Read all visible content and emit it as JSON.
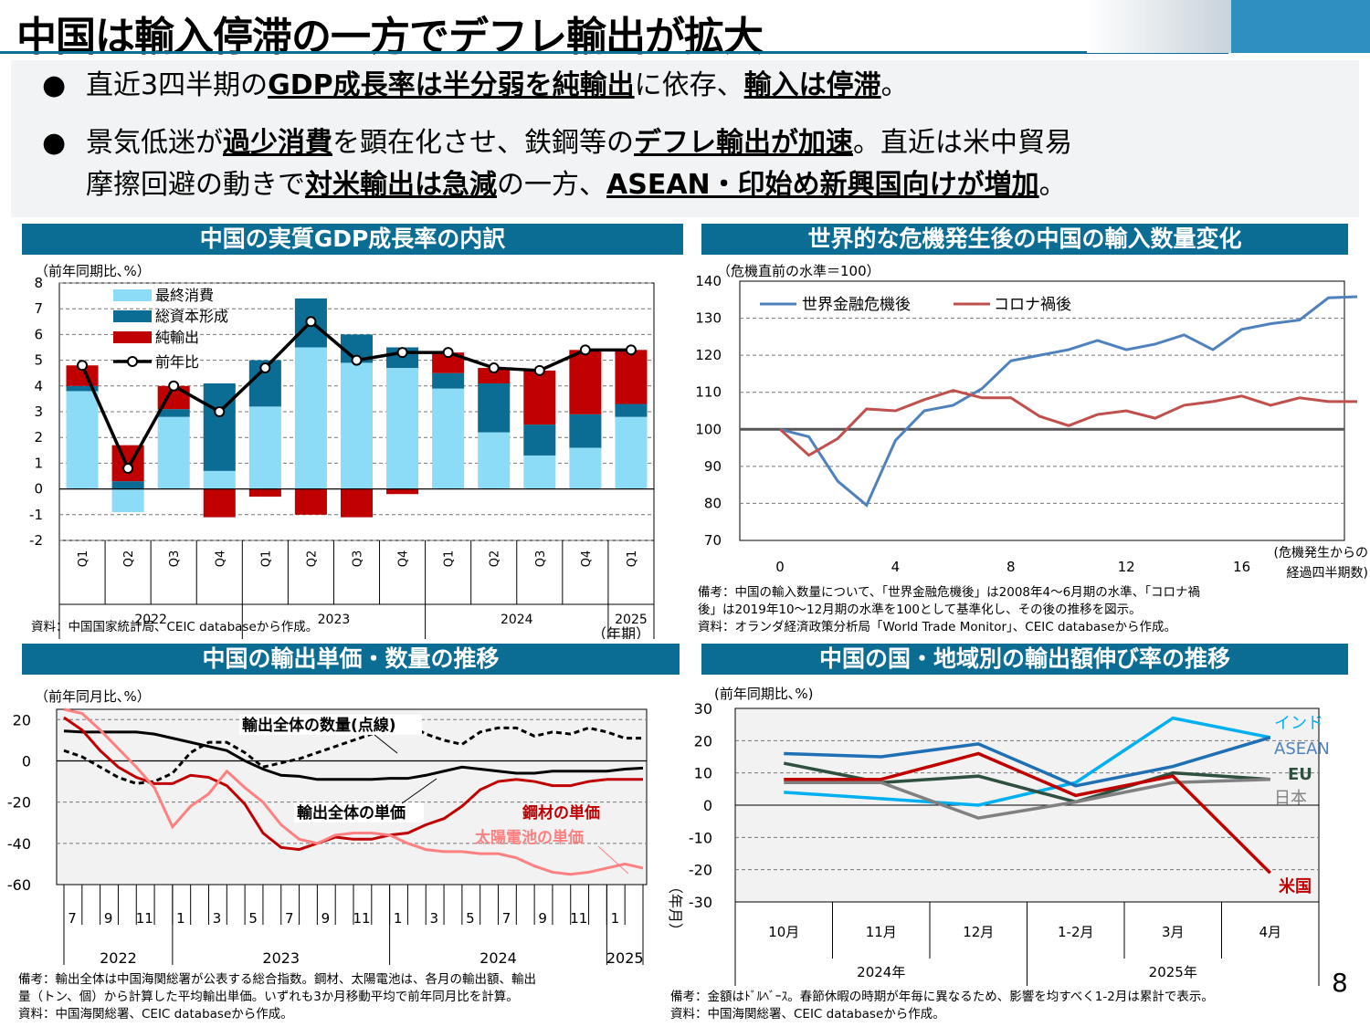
{
  "title": "中国は輸入停滞の一方でデフレ輸出が拡大",
  "bullets": [
    {
      "parts": [
        {
          "t": "直近3四半期の"
        },
        {
          "t": "GDP成長率は半分弱を純輸出",
          "b": true
        },
        {
          "t": "に依存、"
        },
        {
          "t": "輸入は停滞",
          "b": true
        },
        {
          "t": "。"
        }
      ]
    },
    {
      "parts": [
        {
          "t": "景気低迷が"
        },
        {
          "t": "過少消費",
          "b": true
        },
        {
          "t": "を顕在化させ、鉄鋼等の"
        },
        {
          "t": "デフレ輸出が加速",
          "b": true
        },
        {
          "t": "。直近は米中貿易"
        }
      ]
    },
    {
      "parts": [
        {
          "t": "摩擦回避の動きで"
        },
        {
          "t": "対米輸出は急減",
          "b": true
        },
        {
          "t": "の一方、"
        },
        {
          "t": "ASEAN・印始め新興国向けが増加",
          "b": true
        },
        {
          "t": "。"
        }
      ]
    }
  ],
  "page_number": "8",
  "colors": {
    "header": "#0b6c94",
    "consumption": "#8ddcf7",
    "investment": "#0b6c94",
    "netexport": "#c00000",
    "gfc": "#4f81bd",
    "covid": "#c0504d"
  },
  "chart_data": [
    {
      "type": "bar",
      "header": "中国の実質GDP成長率の内訳",
      "ylabel": "（前年同期比､%）",
      "xunit": "（年期）",
      "note": "資料：中国国家統計局、CEIC databaseから作成。",
      "ylim": [
        -2,
        8
      ],
      "yticks": [
        "8",
        "7",
        "6",
        "5",
        "4",
        "3",
        "2",
        "1",
        "0",
        "-1",
        "-2"
      ],
      "categories": [
        "Q1",
        "Q2",
        "Q3",
        "Q4",
        "Q1",
        "Q2",
        "Q3",
        "Q4",
        "Q1",
        "Q2",
        "Q3",
        "Q4",
        "Q1"
      ],
      "years": [
        {
          "label": "2022",
          "span": 4
        },
        {
          "label": "2023",
          "span": 4
        },
        {
          "label": "2024",
          "span": 4
        },
        {
          "label": "2025",
          "span": 1
        }
      ],
      "series": [
        {
          "name": "最終消費",
          "values": [
            3.8,
            -0.9,
            2.8,
            0.7,
            3.2,
            5.5,
            4.9,
            4.7,
            3.9,
            2.2,
            1.3,
            1.6,
            2.8
          ]
        },
        {
          "name": "総資本形成",
          "values": [
            0.2,
            0.3,
            0.3,
            3.4,
            1.8,
            1.9,
            1.1,
            0.8,
            0.6,
            1.9,
            1.2,
            1.3,
            0.5
          ]
        },
        {
          "name": "純輸出",
          "values": [
            0.8,
            1.4,
            0.9,
            -1.1,
            -0.3,
            -1.0,
            -1.1,
            -0.2,
            0.8,
            0.6,
            2.1,
            2.5,
            2.1
          ]
        },
        {
          "name": "前年比",
          "values": [
            4.8,
            0.8,
            4.0,
            3.0,
            4.7,
            6.5,
            5.0,
            5.3,
            5.3,
            4.7,
            4.6,
            5.4,
            5.4
          ]
        }
      ]
    },
    {
      "type": "line",
      "header": "世界的な危機発生後の中国の輸入数量変化",
      "ylabel": "（危機直前の水準＝100）",
      "xunit": [
        "(危機発生からの",
        "経過四半期数)"
      ],
      "note": [
        "備考：中国の輸入数量について、「世界金融危機後」は2008年4～6月期の水準、「コロナ禍",
        "後」は2019年10～12月期の水準を100として基準化し、その後の推移を図示。",
        "資料：オランダ経済政策分析局「World Trade Monitor」、CEIC databaseから作成。"
      ],
      "ylim": [
        70,
        140
      ],
      "yticks": [
        "140",
        "130",
        "120",
        "110",
        "100",
        "90",
        "80",
        "70"
      ],
      "xticks": [
        "0",
        "4",
        "8",
        "12",
        "16"
      ],
      "series": [
        {
          "name": "世界金融危機後",
          "values": [
            100,
            98,
            86,
            79.5,
            97,
            105,
            106.5,
            111,
            118.5,
            120,
            121.5,
            124,
            121.5,
            123,
            125.5,
            121.5,
            127,
            128.5,
            129.5,
            135.5,
            135.8
          ]
        },
        {
          "name": "コロナ禍後",
          "values": [
            100,
            93,
            97.5,
            105.5,
            105,
            108,
            110.5,
            108.5,
            108.5,
            103.5,
            101,
            104,
            105,
            103,
            106.5,
            107.5,
            109,
            106.5,
            108.5,
            107.5,
            107.5
          ]
        }
      ]
    },
    {
      "type": "line",
      "header": "中国の輸出単価・数量の推移",
      "ylabel": "（前年同月比､%）",
      "xunit": "（年月）",
      "note": [
        "備考：輸出全体は中国海関総署が公表する総合指数。鋼材、太陽電池は、各月の輸出額、輸出",
        "量（トン、個）から計算した平均輸出単価。いずれも3か月移動平均で前年同月比を計算。",
        "資料：中国海関総署、CEIC databaseから作成。"
      ],
      "ylim": [
        -60,
        25
      ],
      "yticks": [
        "20",
        "0",
        "-20",
        "-40",
        "-60"
      ],
      "months": [
        "7",
        "9",
        "11",
        "1",
        "3",
        "5",
        "7",
        "9",
        "11",
        "1",
        "3",
        "5",
        "7",
        "9",
        "11",
        "1"
      ],
      "years": [
        "2022",
        "2023",
        "2024",
        "2025"
      ],
      "labels": {
        "volume": "輸出全体の数量(点線)",
        "price": "輸出全体の単価",
        "steel": "鋼材の単価",
        "solar": "太陽電池の単価"
      },
      "series": [
        {
          "name": "輸出全体の数量(点線)",
          "values": [
            5,
            2,
            -3,
            -8,
            -11,
            -10,
            -6,
            4,
            9,
            9,
            4,
            -3,
            -1,
            1,
            4,
            7,
            10,
            13,
            16,
            18,
            13,
            10,
            8,
            14,
            16,
            16,
            12,
            14,
            13,
            16,
            14,
            11,
            11
          ]
        },
        {
          "name": "輸出全体の単価",
          "values": [
            14.5,
            14,
            14,
            14,
            14,
            13,
            11,
            9,
            7,
            5,
            0,
            -4,
            -7,
            -7.5,
            -9,
            -9,
            -9,
            -9,
            -8.5,
            -8.5,
            -7,
            -5,
            -3,
            -4,
            -5,
            -6,
            -6,
            -5,
            -5,
            -5,
            -5,
            -4,
            -3.5
          ]
        },
        {
          "name": "鋼材の単価",
          "values": [
            21,
            15,
            5,
            -3,
            -8,
            -11,
            -11,
            -7,
            -8,
            -12,
            -21,
            -35,
            -42,
            -43,
            -40,
            -37,
            -38,
            -38,
            -36,
            -35,
            -31,
            -28,
            -22,
            -14,
            -10,
            -9,
            -10,
            -12,
            -12,
            -10,
            -9,
            -9,
            -9
          ]
        },
        {
          "name": "太陽電池の単価",
          "values": [
            25,
            23,
            15,
            6,
            -3,
            -13,
            -32,
            -22,
            -16,
            -5,
            -13,
            -20,
            -31,
            -38,
            -40,
            -36,
            -35,
            -35,
            -36,
            -40,
            -43,
            -44,
            -44,
            -45,
            -45,
            -47,
            -51,
            -54,
            -55,
            -54,
            -52,
            -50,
            -52
          ]
        }
      ]
    },
    {
      "type": "line",
      "header": "中国の国・地域別の輸出額伸び率の推移",
      "ylabel": "(前年同期比､%)",
      "note": [
        "備考：金額はﾄﾞﾙﾍﾞｰｽ。春節休暇の時期が年毎に異なるため、影響を均すべく1-2月は累計で表示。",
        "資料：中国海関総署、CEIC databaseから作成。"
      ],
      "ylim": [
        -30,
        30
      ],
      "yticks": [
        "30",
        "20",
        "10",
        "0",
        "-10",
        "-20",
        "-30"
      ],
      "categories": [
        "10月",
        "11月",
        "12月",
        "1-2月",
        "3月",
        "4月"
      ],
      "years": [
        {
          "label": "2024年",
          "span": 3
        },
        {
          "label": "2025年",
          "span": 3
        }
      ],
      "series": [
        {
          "name": "インド",
          "values": [
            4,
            2,
            0,
            7,
            27,
            21
          ]
        },
        {
          "name": "ASEAN",
          "values": [
            16,
            15,
            19,
            6,
            12,
            21
          ]
        },
        {
          "name": "EU",
          "values": [
            13,
            7,
            9,
            1,
            10,
            8
          ]
        },
        {
          "name": "日本",
          "values": [
            7,
            7,
            -4,
            1,
            7,
            8
          ]
        },
        {
          "name": "米国",
          "values": [
            8,
            8,
            16,
            3,
            9,
            -21
          ]
        }
      ]
    }
  ]
}
